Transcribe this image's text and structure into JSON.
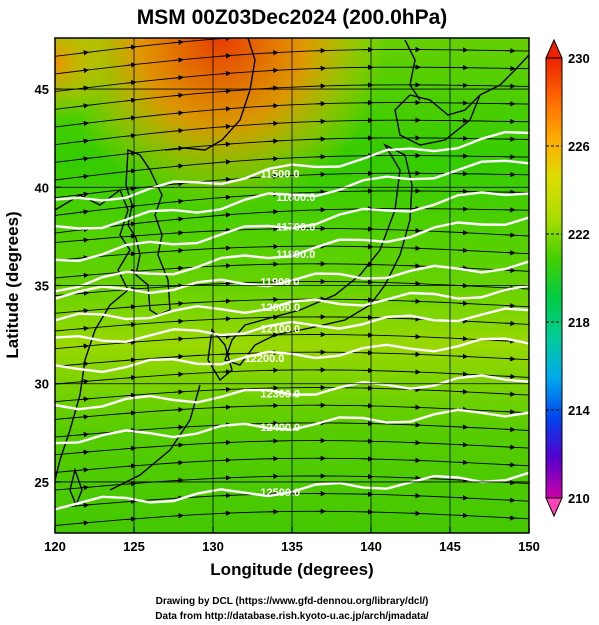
{
  "chart_data": {
    "type": "heatmap",
    "title": "MSM 00Z03Dec2024 (200.0hPa)",
    "xlabel": "Longitude (degrees)",
    "ylabel": "Latitude  (degrees)",
    "xlim": [
      120,
      150
    ],
    "ylim": [
      22.4,
      47.6
    ],
    "xticks": [
      120,
      125,
      130,
      135,
      140,
      145,
      150
    ],
    "yticks": [
      25,
      30,
      35,
      40,
      45
    ],
    "colorbar": {
      "min": 210,
      "max": 230,
      "ticks": [
        210,
        214,
        218,
        222,
        226,
        230
      ],
      "extend": "both",
      "colors": [
        "#cc00aa",
        "#5500cc",
        "#0044ee",
        "#00aaee",
        "#00cc99",
        "#00cc44",
        "#44d000",
        "#aadd00",
        "#dddd00",
        "#ffaa00",
        "#ff6600",
        "#ee2200"
      ]
    },
    "contours": [
      {
        "label": "11500.0",
        "lon": 133,
        "lat": 40.7
      },
      {
        "label": "11600.0",
        "lon": 134,
        "lat": 39.5
      },
      {
        "label": "11700.0",
        "lon": 134,
        "lat": 38.0
      },
      {
        "label": "11800.0",
        "lon": 134,
        "lat": 36.6
      },
      {
        "label": "11900.0",
        "lon": 133,
        "lat": 35.2
      },
      {
        "label": "12000.0",
        "lon": 133,
        "lat": 33.9
      },
      {
        "label": "12100.0",
        "lon": 133,
        "lat": 32.8
      },
      {
        "label": "12200.0",
        "lon": 132,
        "lat": 31.3
      },
      {
        "label": "12300.0",
        "lon": 133,
        "lat": 29.5
      },
      {
        "label": "12400.0",
        "lon": 133,
        "lat": 27.8
      },
      {
        "label": "12500.0",
        "lon": 133,
        "lat": 24.5
      }
    ],
    "wind": "westerly"
  },
  "credits": {
    "line1": "Drawing by DCL (https://www.gfd-dennou.org/library/dcl/)",
    "line2": "Data from http://database.rish.kyoto-u.ac.jp/arch/jmadata/"
  }
}
